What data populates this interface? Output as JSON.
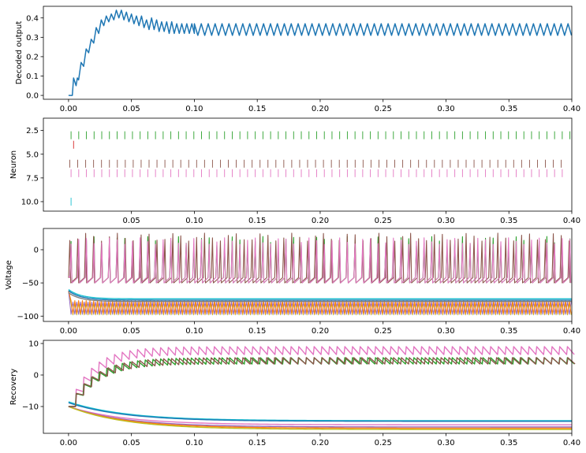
{
  "chart_data": [
    {
      "type": "line",
      "title": "",
      "xlabel": "",
      "ylabel": "Decoded output",
      "xlim": [
        -0.02,
        0.4
      ],
      "ylim": [
        -0.02,
        0.46
      ],
      "xticks": [
        0.0,
        0.05,
        0.1,
        0.15,
        0.2,
        0.25,
        0.3,
        0.35,
        0.4
      ],
      "xtick_labels": [
        "0.00",
        "0.05",
        "0.10",
        "0.15",
        "0.20",
        "0.25",
        "0.30",
        "0.35",
        "0.40"
      ],
      "yticks": [
        0.0,
        0.1,
        0.2,
        0.3,
        0.4
      ],
      "ytick_labels": [
        "0.0",
        "0.1",
        "0.2",
        "0.3",
        "0.4"
      ],
      "grid": false,
      "series": [
        {
          "color": "#1f77b4",
          "x": [
            0.0,
            0.003,
            0.004,
            0.006,
            0.007,
            0.008,
            0.01,
            0.012,
            0.014,
            0.016,
            0.018,
            0.02,
            0.022,
            0.024,
            0.026,
            0.028,
            0.03,
            0.032,
            0.034,
            0.036,
            0.038,
            0.04,
            0.042,
            0.044,
            0.046,
            0.048,
            0.05,
            0.052,
            0.054,
            0.056,
            0.058,
            0.06,
            0.062,
            0.064,
            0.066,
            0.068,
            0.07,
            0.072,
            0.074,
            0.076,
            0.078,
            0.08,
            0.082,
            0.084,
            0.086,
            0.088,
            0.09,
            0.092,
            0.094,
            0.096,
            0.098,
            0.1
          ],
          "values": [
            0.0,
            0.0,
            0.09,
            0.05,
            0.09,
            0.08,
            0.17,
            0.15,
            0.24,
            0.22,
            0.29,
            0.27,
            0.35,
            0.32,
            0.39,
            0.36,
            0.41,
            0.38,
            0.42,
            0.39,
            0.44,
            0.4,
            0.44,
            0.39,
            0.43,
            0.38,
            0.42,
            0.37,
            0.41,
            0.36,
            0.41,
            0.35,
            0.39,
            0.34,
            0.4,
            0.34,
            0.39,
            0.33,
            0.38,
            0.33,
            0.38,
            0.32,
            0.38,
            0.32,
            0.37,
            0.32,
            0.37,
            0.32,
            0.37,
            0.32,
            0.37,
            0.32
          ],
          "steady_state": {
            "x_start": 0.1,
            "x_end": 0.4,
            "period": 0.0055,
            "low": 0.31,
            "high": 0.37
          }
        }
      ]
    },
    {
      "type": "scatter",
      "title": "",
      "xlabel": "",
      "ylabel": "Neuron",
      "xlim": [
        -0.02,
        0.4
      ],
      "ylim": [
        11.0,
        1.2
      ],
      "y_inverted": true,
      "xticks": [
        0.05,
        0.1,
        0.15,
        0.2,
        0.25,
        0.3,
        0.35,
        0.4
      ],
      "xtick_labels": [
        "0.05",
        "0.10",
        "0.15",
        "0.20",
        "0.25",
        "0.30",
        "0.35",
        "0.40"
      ],
      "yticks": [
        2.5,
        5.0,
        7.5,
        10.0
      ],
      "ytick_labels": [
        "2.5",
        "5.0",
        "7.5",
        "10.0"
      ],
      "grid": false,
      "marker": "vertical-line",
      "rasters": [
        {
          "neuron": 3,
          "color": "#2ca02c",
          "first": 0.002,
          "period": 0.0061,
          "end": 0.4
        },
        {
          "neuron": 4,
          "color": "#d62728",
          "times": [
            0.004
          ]
        },
        {
          "neuron": 6,
          "color": "#8c564b",
          "first": 0.001,
          "period": 0.0063,
          "end": 0.395
        },
        {
          "neuron": 7,
          "color": "#e377c2",
          "first": 0.002,
          "period": 0.0061,
          "end": 0.395
        },
        {
          "neuron": 10,
          "color": "#17becf",
          "times": [
            0.002
          ]
        }
      ]
    },
    {
      "type": "line",
      "title": "",
      "xlabel": "",
      "ylabel": "Voltage",
      "xlim": [
        -0.02,
        0.4
      ],
      "ylim": [
        -108,
        32
      ],
      "xticks": [
        0.0,
        0.05,
        0.1,
        0.15,
        0.2,
        0.25,
        0.3,
        0.35,
        0.4
      ],
      "xtick_labels": [
        "0.00",
        "0.05",
        "0.10",
        "0.15",
        "0.20",
        "0.25",
        "0.30",
        "0.35",
        "0.40"
      ],
      "yticks": [
        0,
        -50,
        -100
      ],
      "ytick_labels": [
        "0",
        "−50",
        "−100"
      ],
      "grid": false,
      "spiking_series": [
        {
          "color": "#2ca02c",
          "rest": -50,
          "peak": 20,
          "first": 0.002,
          "period": 0.0061,
          "peak_variation": 15
        },
        {
          "color": "#8c564b",
          "rest": -50,
          "peak": 25,
          "first": 0.001,
          "period": 0.0063,
          "peak_variation": 12
        },
        {
          "color": "#e377c2",
          "rest": -50,
          "peak": 18,
          "first": 0.002,
          "period": 0.0061,
          "peak_variation": 10
        }
      ],
      "settling_series": [
        {
          "color": "#17becf",
          "start": -60,
          "final": -74
        },
        {
          "color": "#1f77b4",
          "start": -62,
          "final": -76
        },
        {
          "color": "#7f7f7f",
          "start": -65,
          "final": -78
        }
      ],
      "oscillating_band": {
        "colors": [
          "#bcbd22",
          "#9467bd",
          "#ff7f0e"
        ],
        "center": -88,
        "amplitude": 10,
        "period": 0.003
      }
    },
    {
      "type": "line",
      "title": "",
      "xlabel": "",
      "ylabel": "Recovery",
      "xlim": [
        -0.02,
        0.4
      ],
      "ylim": [
        -18.5,
        11
      ],
      "xticks": [
        0.0,
        0.05,
        0.1,
        0.15,
        0.2,
        0.25,
        0.3,
        0.35,
        0.4
      ],
      "xtick_labels": [
        "0.00",
        "0.05",
        "0.10",
        "0.15",
        "0.20",
        "0.25",
        "0.30",
        "0.35",
        "0.40"
      ],
      "yticks": [
        10,
        0,
        -10
      ],
      "ytick_labels": [
        "10",
        "0",
        "−10"
      ],
      "grid": false,
      "rising_series": [
        {
          "color": "#e377c2",
          "start": -10,
          "low": 6.5,
          "high": 9,
          "tau": 0.018,
          "period": 0.0061
        },
        {
          "color": "#2ca02c",
          "start": -10,
          "low": 3.5,
          "high": 5.5,
          "tau": 0.02,
          "period": 0.0061
        },
        {
          "color": "#8c564b",
          "start": -10,
          "low": 3.5,
          "high": 5.5,
          "tau": 0.02,
          "period": 0.0063
        }
      ],
      "decaying_series": [
        {
          "color": "#17becf",
          "start": -8.5,
          "final": -14.5
        },
        {
          "color": "#1f77b4",
          "start": -8.8,
          "final": -14.7
        },
        {
          "color": "#e377c2",
          "start": -10,
          "final": -15.8
        },
        {
          "color": "#9467bd",
          "start": -10,
          "final": -16.5
        },
        {
          "color": "#ff7f0e",
          "start": -10,
          "final": -16.9
        },
        {
          "color": "#bcbd22",
          "start": -10,
          "final": -17.3
        }
      ]
    }
  ]
}
